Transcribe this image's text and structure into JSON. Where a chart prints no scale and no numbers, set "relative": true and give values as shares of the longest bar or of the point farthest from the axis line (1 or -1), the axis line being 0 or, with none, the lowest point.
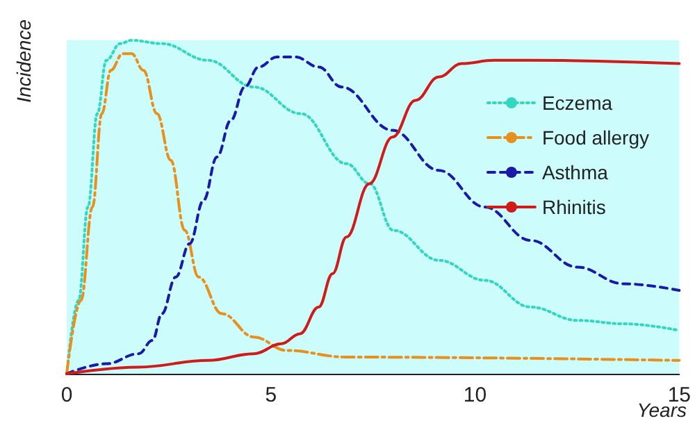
{
  "chart_data": {
    "type": "line",
    "relative": true,
    "xlabel": "Years",
    "ylabel": "Incidence",
    "xlim": [
      0,
      15
    ],
    "xticks": [
      0,
      5,
      10,
      15
    ],
    "legend": "top right",
    "marker": "none",
    "series": [
      {
        "name": "Eczema",
        "color": "#33d6bf",
        "line_style": "dotted",
        "x": [
          0,
          0.29,
          0.52,
          0.75,
          0.97,
          1.31,
          1.59,
          2.33,
          3.46,
          4.58,
          5.73,
          6.85,
          7.42,
          8.0,
          9.12,
          10.24,
          11.36,
          12.51,
          13.63,
          15
        ],
        "values": [
          0,
          0.22,
          0.5,
          0.78,
          0.94,
          0.99,
          1.0,
          0.99,
          0.94,
          0.86,
          0.78,
          0.63,
          0.57,
          0.43,
          0.34,
          0.28,
          0.2,
          0.16,
          0.15,
          0.13
        ]
      },
      {
        "name": "Food allergy",
        "color": "#e8901e",
        "line_style": "dashdot",
        "x": [
          0,
          0.35,
          0.63,
          0.86,
          1.08,
          1.37,
          1.59,
          1.88,
          2.21,
          2.55,
          2.89,
          3.23,
          3.8,
          4.59,
          5.38,
          6.85,
          15
        ],
        "values": [
          0,
          0.22,
          0.5,
          0.78,
          0.91,
          0.96,
          0.96,
          0.91,
          0.78,
          0.64,
          0.43,
          0.29,
          0.18,
          0.11,
          0.07,
          0.05,
          0.04
        ]
      },
      {
        "name": "Asthma",
        "color": "#1a1aa6",
        "line_style": "dashed",
        "x": [
          0,
          0.97,
          1.76,
          2.1,
          2.33,
          2.67,
          3.01,
          3.35,
          3.68,
          4.02,
          4.36,
          4.7,
          5.15,
          5.6,
          6.17,
          6.73,
          7.98,
          9.11,
          10.24,
          11.36,
          12.5,
          13.63,
          15
        ],
        "values": [
          0,
          0.03,
          0.06,
          0.1,
          0.18,
          0.29,
          0.39,
          0.52,
          0.65,
          0.76,
          0.86,
          0.92,
          0.95,
          0.95,
          0.92,
          0.86,
          0.73,
          0.61,
          0.5,
          0.4,
          0.32,
          0.27,
          0.25
        ]
      },
      {
        "name": "Rhinitis",
        "color": "#d01b1b",
        "line_style": "solid",
        "x": [
          0,
          1.76,
          3.46,
          4.58,
          5.26,
          5.71,
          6.17,
          6.51,
          6.85,
          7.41,
          7.98,
          8.54,
          9.11,
          9.67,
          10.46,
          11.36,
          15
        ],
        "values": [
          0,
          0.02,
          0.04,
          0.06,
          0.09,
          0.12,
          0.2,
          0.3,
          0.41,
          0.57,
          0.71,
          0.82,
          0.89,
          0.93,
          0.94,
          0.94,
          0.93
        ]
      }
    ]
  }
}
